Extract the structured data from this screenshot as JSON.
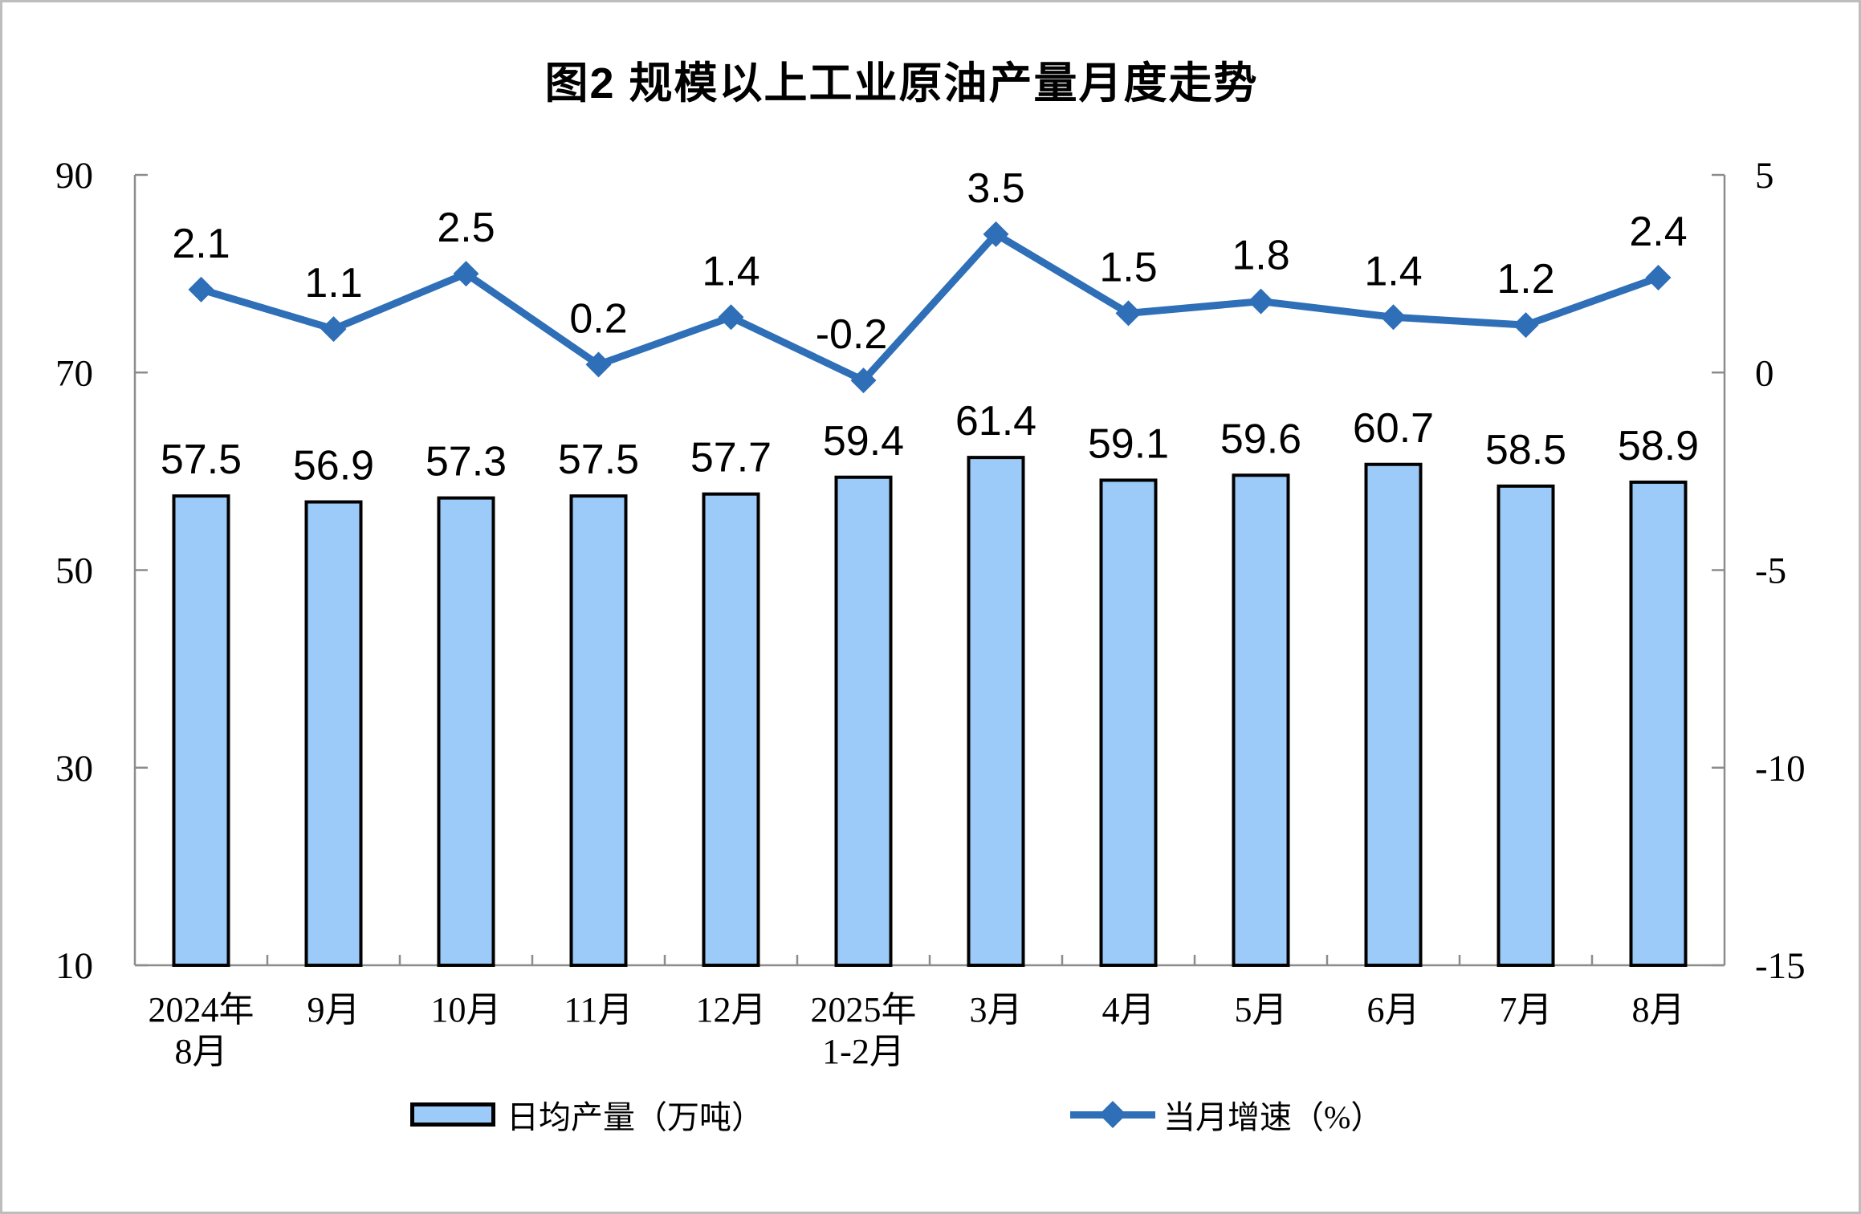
{
  "chart_data": {
    "type": "bar+line",
    "title": "图2 规模以上工业原油产量月度走势",
    "categories": [
      [
        "2024年",
        "8月"
      ],
      [
        "9月"
      ],
      [
        "10月"
      ],
      [
        "11月"
      ],
      [
        "12月"
      ],
      [
        "2025年",
        "1-2月"
      ],
      [
        "3月"
      ],
      [
        "4月"
      ],
      [
        "5月"
      ],
      [
        "6月"
      ],
      [
        "7月"
      ],
      [
        "8月"
      ]
    ],
    "series": [
      {
        "name": "日均产量（万吨）",
        "type": "bar",
        "axis": "left",
        "values": [
          57.5,
          56.9,
          57.3,
          57.5,
          57.7,
          59.4,
          61.4,
          59.1,
          59.6,
          60.7,
          58.5,
          58.9
        ]
      },
      {
        "name": "当月增速（%）",
        "type": "line",
        "axis": "right",
        "marker": "diamond",
        "values": [
          2.1,
          1.1,
          2.5,
          0.2,
          1.4,
          -0.2,
          3.5,
          1.5,
          1.8,
          1.4,
          1.2,
          2.4
        ]
      }
    ],
    "left_axis": {
      "min": 10,
      "max": 90,
      "ticks": [
        10,
        30,
        50,
        70,
        90
      ]
    },
    "right_axis": {
      "min": -15,
      "max": 5,
      "ticks": [
        -15,
        -10,
        -5,
        0,
        5
      ]
    },
    "legend": [
      {
        "label": "日均产量（万吨）",
        "swatch": "bar"
      },
      {
        "label": "当月增速（%）",
        "swatch": "line"
      }
    ],
    "colors": {
      "bar_fill": "#9CCBF9",
      "bar_stroke": "#000000",
      "line": "#2E6FB7",
      "axis": "#8C8C8C",
      "text": "#000000"
    }
  }
}
